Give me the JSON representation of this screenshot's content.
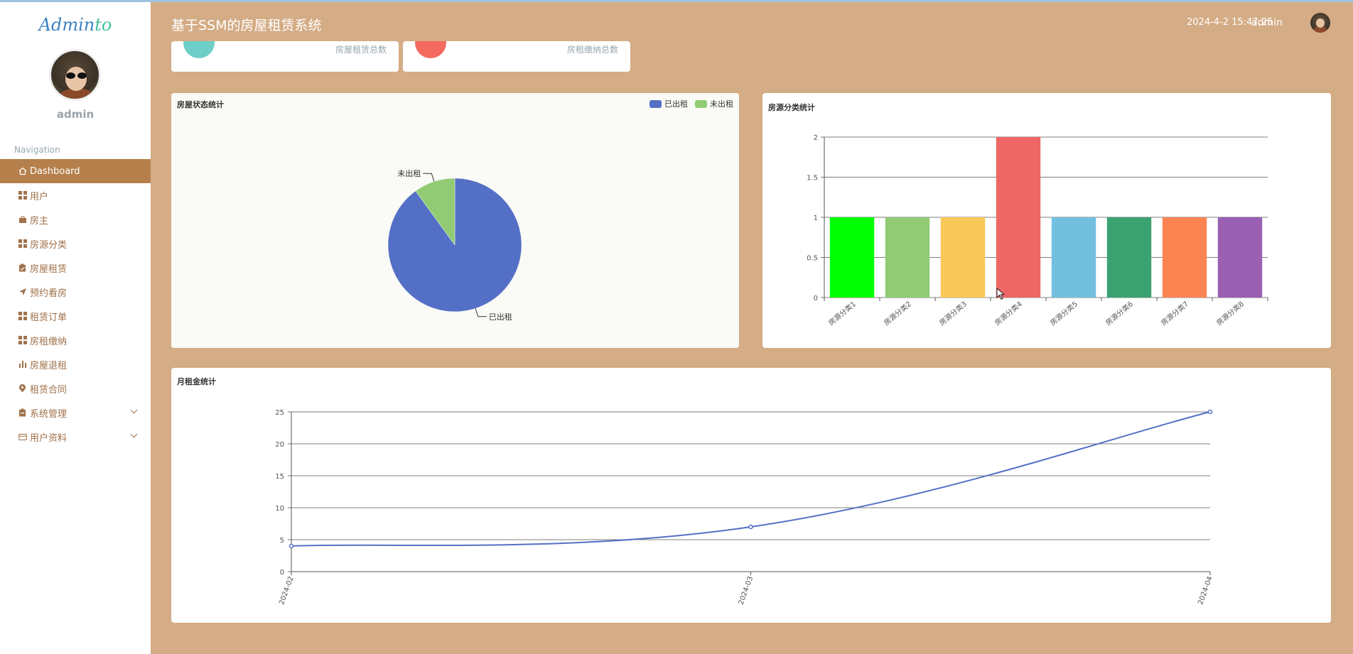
{
  "app": {
    "logo_part1": "Admin",
    "logo_part2": "to",
    "title": "基于SSM的房屋租赁系统",
    "datetime": "2024-4-2 15:47:25",
    "user": "admin"
  },
  "sidebar": {
    "username": "admin",
    "nav_title": "Navigation",
    "items": [
      {
        "label": "Dashboard",
        "icon": "home-icon"
      },
      {
        "label": "用户",
        "icon": "grid-icon"
      },
      {
        "label": "房主",
        "icon": "briefcase-icon"
      },
      {
        "label": "房源分类",
        "icon": "grid-icon"
      },
      {
        "label": "房屋租赁",
        "icon": "clipboard-icon"
      },
      {
        "label": "预约看房",
        "icon": "send-icon"
      },
      {
        "label": "租赁订单",
        "icon": "grid-icon"
      },
      {
        "label": "房租缴纳",
        "icon": "grid-icon"
      },
      {
        "label": "房屋退租",
        "icon": "bar-chart-icon"
      },
      {
        "label": "租赁合同",
        "icon": "map-pin-icon"
      },
      {
        "label": "系统管理",
        "icon": "clipboard-icon"
      },
      {
        "label": "用户资料",
        "icon": "card-icon"
      }
    ]
  },
  "stats": {
    "rental_total_label": "房屋租赁总数",
    "payment_total_label": "房租缴纳总数",
    "colors": {
      "rental": "#6ecfc8",
      "payment": "#f46a5e"
    }
  },
  "chart_data": [
    {
      "type": "pie",
      "title": "房屋状态统计",
      "categories": [
        "已出租",
        "未出租"
      ],
      "values": [
        9,
        1
      ],
      "colors": [
        "#5470c6",
        "#91cc75"
      ],
      "legend": "top-right"
    },
    {
      "type": "bar",
      "title": "房源分类统计",
      "categories": [
        "房源分类1",
        "房源分类2",
        "房源分类3",
        "房源分类4",
        "房源分类5",
        "房源分类6",
        "房源分类7",
        "房源分类8"
      ],
      "values": [
        1,
        1,
        1,
        2,
        1,
        1,
        1,
        1
      ],
      "colors": [
        "#00ff00",
        "#91cc75",
        "#fac858",
        "#ee6666",
        "#73c0de",
        "#3ba272",
        "#fc8452",
        "#9a60b4"
      ],
      "ylim": [
        0,
        2
      ],
      "yticks": [
        "0",
        "0.5",
        "1",
        "1.5",
        "2"
      ],
      "grid": true
    },
    {
      "type": "line",
      "title": "月租金统计",
      "x": [
        "2024-02",
        "2024-03",
        "2024-04"
      ],
      "values": [
        4,
        7,
        25
      ],
      "color": "#5470c6",
      "ylim": [
        0,
        25
      ],
      "yticks": [
        "0",
        "5",
        "10",
        "15",
        "20",
        "25"
      ],
      "grid": true
    }
  ]
}
